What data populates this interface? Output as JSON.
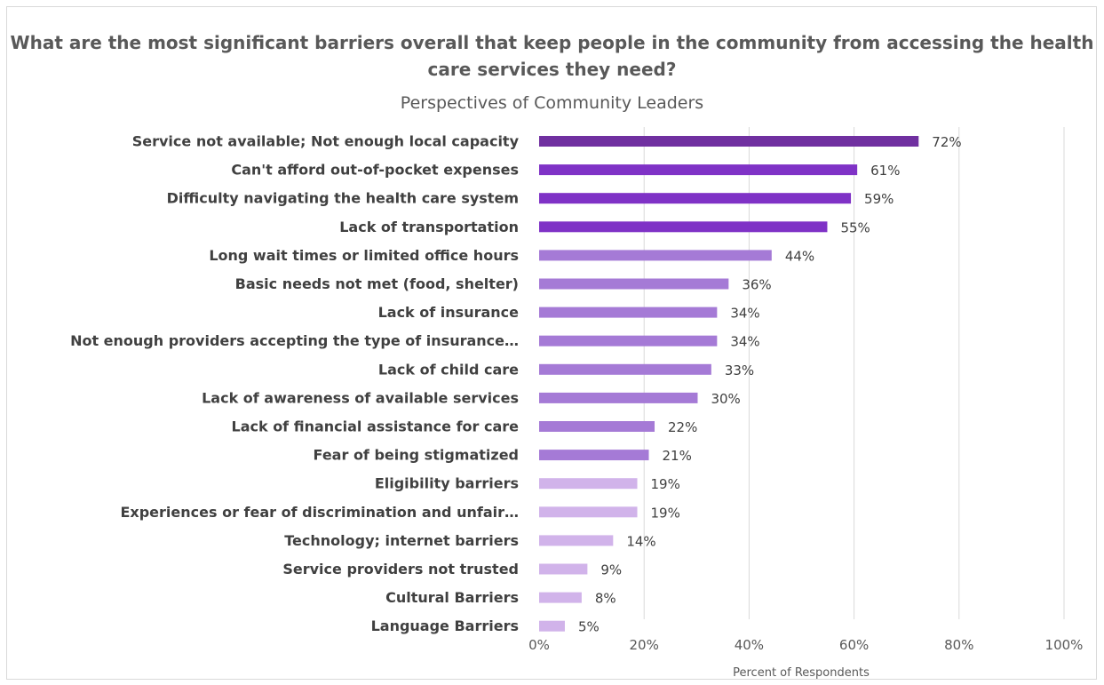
{
  "chart_data": {
    "type": "bar",
    "orientation": "horizontal",
    "title": "What are the most significant barriers overall that keep people in the community from accessing the health care services they need?",
    "subtitle": "Perspectives of Community Leaders",
    "xlabel": "Percent of Respondents",
    "ylabel": "",
    "xlim": [
      0,
      100
    ],
    "x_ticks": [
      "0%",
      "20%",
      "40%",
      "60%",
      "80%",
      "100%"
    ],
    "grid": "vertical",
    "legend": "none",
    "categories": [
      "Service not available; Not enough local capacity",
      "Can't afford out-of-pocket expenses",
      "Difficulty navigating the health care system",
      "Lack of transportation",
      "Long wait times or limited office hours",
      "Basic needs not met (food, shelter)",
      "Lack of insurance",
      "Not enough providers accepting the type of insurance…",
      "Lack of child care",
      "Lack of awareness of available services",
      "Lack of financial assistance for care",
      "Fear of being stigmatized",
      "Eligibility barriers",
      "Experiences or fear of discrimination and unfair…",
      "Technology; internet barriers",
      "Service providers not trusted",
      "Cultural Barriers",
      "Language Barriers"
    ],
    "values": [
      72.3,
      60.6,
      59.4,
      54.9,
      44.3,
      36.1,
      33.9,
      33.9,
      32.8,
      30.2,
      22.0,
      20.9,
      18.7,
      18.7,
      14.1,
      9.2,
      8.1,
      4.9
    ],
    "value_labels": [
      "72%",
      "61%",
      "59%",
      "55%",
      "44%",
      "36%",
      "34%",
      "34%",
      "33%",
      "30%",
      "22%",
      "21%",
      "19%",
      "19%",
      "14%",
      "9%",
      "8%",
      "5%"
    ],
    "bar_colors": [
      "#7030a0",
      "#7f32c6",
      "#7f32c6",
      "#7f32c6",
      "#a57ad6",
      "#a57ad6",
      "#a57ad6",
      "#a57ad6",
      "#a57ad6",
      "#a57ad6",
      "#a57ad6",
      "#a57ad6",
      "#d1b3ea",
      "#d1b3ea",
      "#d1b3ea",
      "#d1b3ea",
      "#d1b3ea",
      "#d1b3ea"
    ],
    "colors": {
      "gridline": "#d9d9d9",
      "text": "#404040",
      "axis_text": "#595959"
    }
  }
}
